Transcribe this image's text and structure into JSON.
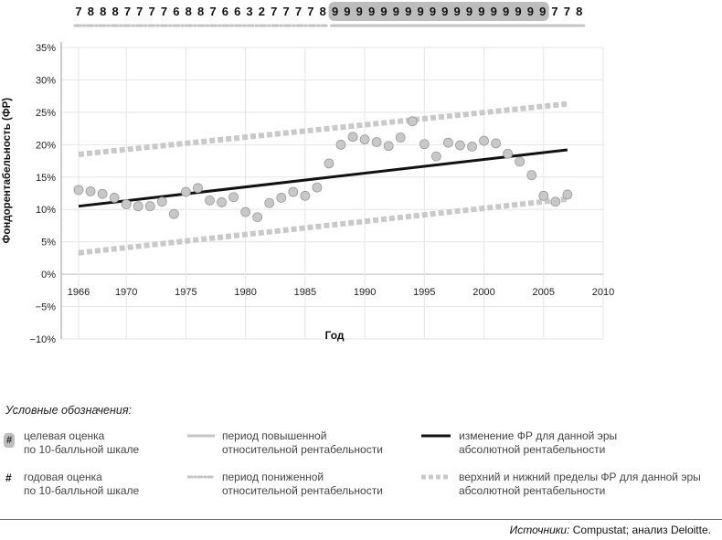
{
  "chart_data": {
    "type": "scatter",
    "ylabel": "Фондорентабельность (ФР)",
    "xlabel": "Год",
    "xlim": [
      1966,
      2010
    ],
    "ylim": [
      -10,
      35
    ],
    "x_ticks": [
      "1966",
      "1970",
      "1975",
      "1980",
      "1985",
      "1990",
      "1995",
      "2000",
      "2005",
      "2010"
    ],
    "x_tick_values": [
      1966,
      1970,
      1975,
      1980,
      1985,
      1990,
      1995,
      2000,
      2005,
      2010
    ],
    "y_ticks": [
      "35%",
      "30%",
      "25%",
      "20%",
      "15%",
      "10%",
      "5%",
      "0%",
      "−5%",
      "−10%"
    ],
    "y_tick_values": [
      35,
      30,
      25,
      20,
      15,
      10,
      5,
      0,
      -5,
      -10
    ],
    "grid": true,
    "points": {
      "x": [
        1966,
        1967,
        1968,
        1969,
        1970,
        1971,
        1972,
        1973,
        1974,
        1975,
        1976,
        1977,
        1978,
        1979,
        1980,
        1981,
        1982,
        1983,
        1984,
        1985,
        1986,
        1987,
        1988,
        1989,
        1990,
        1991,
        1992,
        1993,
        1994,
        1995,
        1996,
        1997,
        1998,
        1999,
        2000,
        2001,
        2002,
        2003,
        2004,
        2005,
        2006,
        2007
      ],
      "y": [
        13.0,
        12.8,
        12.4,
        11.8,
        10.8,
        10.5,
        10.5,
        11.2,
        9.3,
        12.7,
        13.3,
        11.4,
        11.1,
        11.9,
        9.6,
        8.8,
        11.0,
        11.8,
        12.7,
        12.1,
        13.4,
        17.1,
        20.0,
        21.2,
        20.8,
        20.4,
        19.8,
        21.1,
        23.6,
        20.1,
        18.2,
        20.3,
        19.9,
        19.7,
        20.6,
        20.2,
        18.6,
        17.4,
        15.3,
        12.1,
        11.2,
        12.3
      ]
    },
    "trend_line": {
      "x": [
        1966,
        2007
      ],
      "y": [
        10.5,
        19.2
      ]
    },
    "upper_bound": {
      "x": [
        1966,
        2007
      ],
      "y": [
        18.5,
        26.3
      ]
    },
    "lower_bound": {
      "x": [
        1966,
        2007
      ],
      "y": [
        3.3,
        11.6
      ]
    },
    "annual_scores": {
      "x": [
        1966,
        1967,
        1968,
        1969,
        1970,
        1971,
        1972,
        1973,
        1974,
        1975,
        1976,
        1977,
        1978,
        1979,
        1980,
        1981,
        1982,
        1983,
        1984,
        1985,
        1986,
        1987,
        1988,
        1989,
        1990,
        1991,
        1992,
        1993,
        1994,
        1995,
        1996,
        1997,
        1998,
        1999,
        2000,
        2001,
        2002,
        2003,
        2004,
        2005,
        2006,
        2007
      ],
      "scores": [
        "7",
        "8",
        "8",
        "8",
        "7",
        "7",
        "7",
        "7",
        "6",
        "8",
        "8",
        "7",
        "6",
        "6",
        "3",
        "2",
        "7",
        "7",
        "7",
        "7",
        "8",
        "9",
        "9",
        "9",
        "9",
        "9",
        "9",
        "9",
        "9",
        "9",
        "9",
        "9",
        "9",
        "9",
        "9",
        "9",
        "9",
        "9",
        "9",
        "7",
        "7",
        "8"
      ],
      "target_start_index": 21,
      "target_end_index": 38
    },
    "colors": {
      "points": "#c8c8c8",
      "points_stroke": "#9a9a9a",
      "trend": "#111111",
      "bounds": "#c9c9c9",
      "grid": "#e6e6e6",
      "highlight_bar": "#bdbdbd",
      "period_high": "#c4c4c4",
      "period_low": "#c4c4c4"
    }
  },
  "legend": {
    "title": "Условные обозначения:",
    "items": [
      {
        "symbol": "#",
        "text1": "целевая оценка",
        "text2": "по 10-балльной шкале"
      },
      {
        "symbol": "#",
        "text1": "годовая оценка",
        "text2": "по 10-балльной шкале"
      },
      {
        "text1": "период повышенной",
        "text2": "относительной рентабельности"
      },
      {
        "text1": "период пониженной",
        "text2": "относительной рентабельности"
      },
      {
        "text1": "изменение ФР для данной эры",
        "text2": "абсолютной рентабельности"
      },
      {
        "text1": "верхний и нижний пределы ФР для данной эры",
        "text2": "абсолютной рентабельности"
      }
    ]
  },
  "source": {
    "label": "Источники:",
    "text": " Compustat; анализ Deloitte."
  }
}
